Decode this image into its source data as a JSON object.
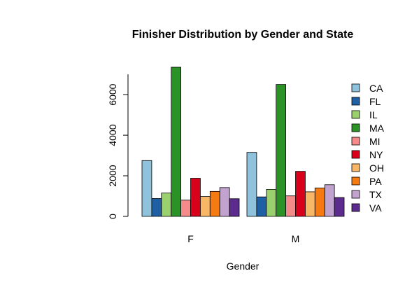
{
  "chart_data": {
    "type": "bar",
    "title": "Finisher Distribution by Gender and State",
    "xlabel": "Gender",
    "ylabel": "",
    "categories": [
      "F",
      "M"
    ],
    "ylim": [
      0,
      7000
    ],
    "yticks": [
      0,
      2000,
      4000,
      6000
    ],
    "legend_position": "right",
    "grid": false,
    "series": [
      {
        "name": "CA",
        "color": "#8fc3dd",
        "values": [
          2750,
          3150
        ]
      },
      {
        "name": "FL",
        "color": "#1f5fa3",
        "values": [
          880,
          960
        ]
      },
      {
        "name": "IL",
        "color": "#9ad06d",
        "values": [
          1150,
          1330
        ]
      },
      {
        "name": "MA",
        "color": "#2b9326",
        "values": [
          7350,
          6500
        ]
      },
      {
        "name": "MI",
        "color": "#f58a8a",
        "values": [
          800,
          1010
        ]
      },
      {
        "name": "NY",
        "color": "#d9001c",
        "values": [
          1880,
          2220
        ]
      },
      {
        "name": "OH",
        "color": "#f8b766",
        "values": [
          980,
          1210
        ]
      },
      {
        "name": "PA",
        "color": "#f57a11",
        "values": [
          1230,
          1400
        ]
      },
      {
        "name": "TX",
        "color": "#c2a2cf",
        "values": [
          1420,
          1560
        ]
      },
      {
        "name": "VA",
        "color": "#5b2b8d",
        "values": [
          870,
          930
        ]
      }
    ]
  }
}
